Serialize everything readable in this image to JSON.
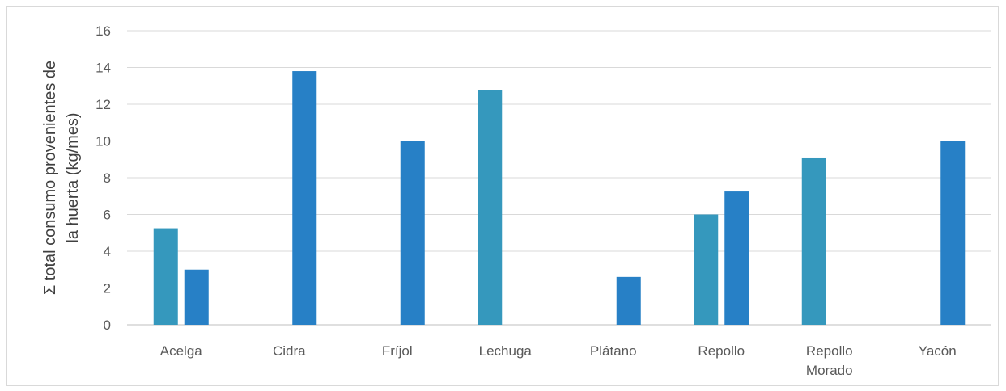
{
  "chart_data": {
    "type": "bar",
    "categories": [
      [
        "Acelga"
      ],
      [
        "Cidra"
      ],
      [
        "Fríjol"
      ],
      [
        "Lechuga"
      ],
      [
        "Plátano"
      ],
      [
        "Repollo"
      ],
      [
        "Repollo",
        "Morado"
      ],
      [
        "Yacón"
      ]
    ],
    "series": [
      {
        "values": [
          5.25,
          null,
          null,
          12.75,
          null,
          6.0,
          9.1,
          null
        ]
      },
      {
        "values": [
          3.0,
          13.8,
          10.0,
          null,
          2.6,
          7.25,
          null,
          10.0
        ]
      }
    ],
    "colors": [
      "#3598bd",
      "#2780c6"
    ],
    "ylabel_lines": [
      "Σ total consumo provenientes de",
      "la huerta (kg/mes)"
    ],
    "ylim": [
      0,
      16
    ],
    "yticks": [
      0,
      2,
      4,
      6,
      8,
      10,
      12,
      14,
      16
    ],
    "grid": true,
    "legend": false
  }
}
